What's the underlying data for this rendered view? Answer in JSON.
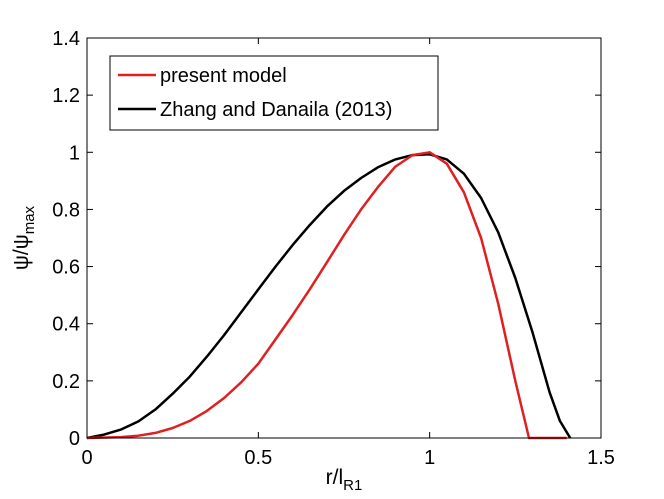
{
  "chart_data": {
    "type": "line",
    "title": "",
    "xlabel": {
      "main": "r/l",
      "sub": "R1"
    },
    "ylabel": {
      "main": "ψ/ψ",
      "sub": "max"
    },
    "xlim": [
      0,
      1.5
    ],
    "ylim": [
      0,
      1.4
    ],
    "xticks": [
      0,
      0.5,
      1,
      1.5
    ],
    "xtick_labels": [
      "0",
      "0.5",
      "1",
      "1.5"
    ],
    "yticks": [
      0,
      0.2,
      0.4,
      0.6,
      0.8,
      1.0,
      1.2,
      1.4
    ],
    "ytick_labels": [
      "0",
      "0.2",
      "0.4",
      "0.6",
      "0.8",
      "1",
      "1.2",
      "1.4"
    ],
    "grid": false,
    "legend_position": "top-left",
    "series": [
      {
        "name": "present model",
        "color": "#e02020",
        "x": [
          0,
          0.1,
          0.15,
          0.2,
          0.25,
          0.3,
          0.35,
          0.4,
          0.45,
          0.5,
          0.55,
          0.6,
          0.65,
          0.7,
          0.75,
          0.8,
          0.85,
          0.9,
          0.95,
          1.0,
          1.05,
          1.1,
          1.15,
          1.2,
          1.25,
          1.29,
          1.3,
          1.37,
          1.4
        ],
        "y": [
          0,
          0.003,
          0.008,
          0.018,
          0.035,
          0.06,
          0.095,
          0.14,
          0.195,
          0.26,
          0.345,
          0.43,
          0.52,
          0.615,
          0.71,
          0.8,
          0.88,
          0.95,
          0.99,
          1.0,
          0.96,
          0.86,
          0.7,
          0.47,
          0.2,
          0.0,
          0.0,
          0.0,
          0.0
        ]
      },
      {
        "name": "Zhang and Danaila (2013)",
        "color": "#000000",
        "x": [
          0,
          0.05,
          0.1,
          0.15,
          0.2,
          0.25,
          0.3,
          0.35,
          0.4,
          0.45,
          0.5,
          0.55,
          0.6,
          0.65,
          0.7,
          0.75,
          0.8,
          0.85,
          0.9,
          0.95,
          1.0,
          1.05,
          1.1,
          1.15,
          1.2,
          1.25,
          1.3,
          1.35,
          1.38,
          1.41
        ],
        "y": [
          0,
          0.012,
          0.03,
          0.058,
          0.1,
          0.155,
          0.215,
          0.285,
          0.36,
          0.44,
          0.52,
          0.6,
          0.675,
          0.745,
          0.81,
          0.865,
          0.91,
          0.948,
          0.975,
          0.99,
          0.993,
          0.975,
          0.925,
          0.84,
          0.72,
          0.56,
          0.37,
          0.16,
          0.06,
          0.0
        ]
      }
    ]
  }
}
